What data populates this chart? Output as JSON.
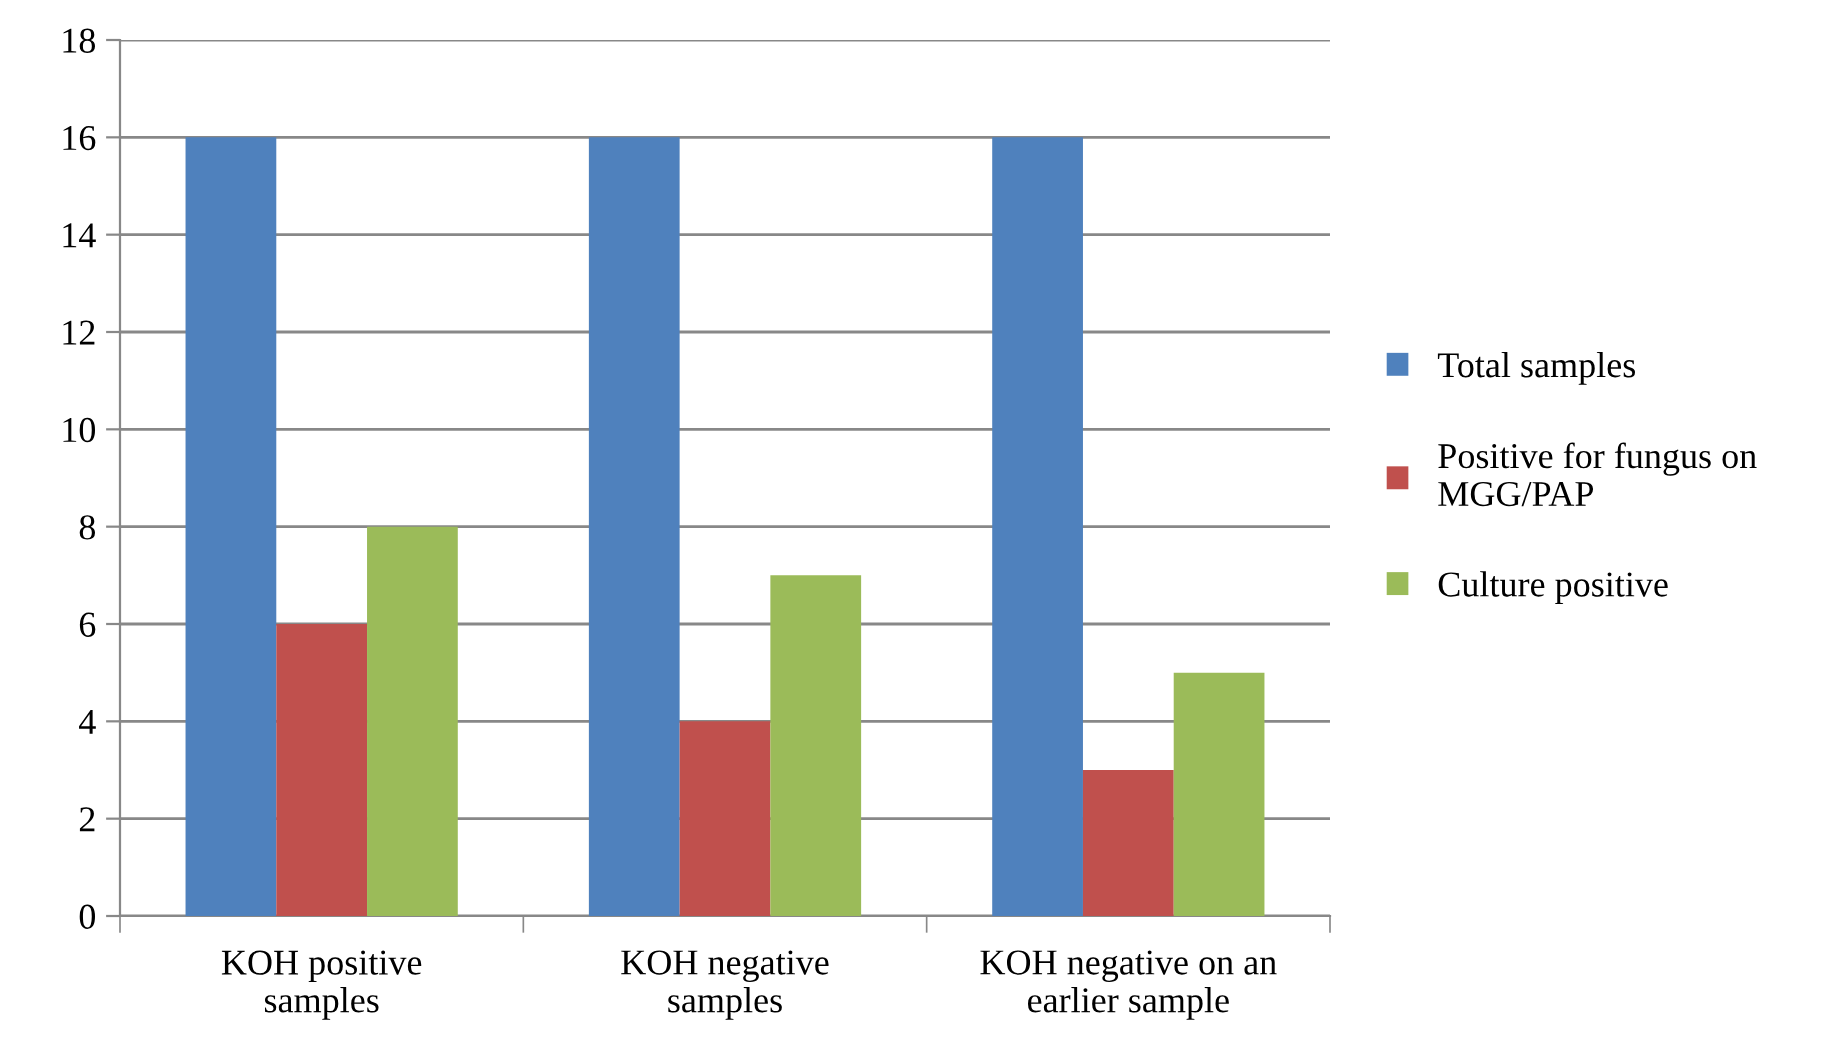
{
  "chart_data": {
    "type": "bar",
    "categories": [
      "KOH positive\nsamples",
      "KOH negative\nsamples",
      "KOH negative on an\nearlier sample"
    ],
    "series": [
      {
        "name": "Total samples",
        "color": "#4f81bd",
        "values": [
          16,
          16,
          16
        ]
      },
      {
        "name": "Positive for fungus on\nMGG/PAP",
        "color": "#c0504d",
        "values": [
          6,
          4,
          3
        ]
      },
      {
        "name": "Culture positive",
        "color": "#9bbb59",
        "values": [
          8,
          7,
          5
        ]
      }
    ],
    "ylim": [
      0,
      18
    ],
    "yticks": [
      0,
      2,
      4,
      6,
      8,
      10,
      12,
      14,
      16,
      18
    ],
    "grid": "y",
    "legend": "right"
  }
}
